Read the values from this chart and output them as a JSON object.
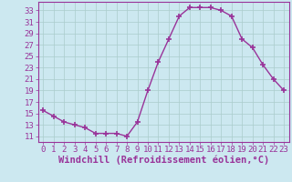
{
  "x": [
    0,
    1,
    2,
    3,
    4,
    5,
    6,
    7,
    8,
    9,
    10,
    11,
    12,
    13,
    14,
    15,
    16,
    17,
    18,
    19,
    20,
    21,
    22,
    23
  ],
  "y": [
    15.5,
    14.5,
    13.5,
    13.0,
    12.5,
    11.5,
    11.5,
    11.5,
    11.0,
    13.5,
    19.0,
    24.0,
    28.0,
    32.0,
    33.5,
    33.5,
    33.5,
    33.0,
    32.0,
    28.0,
    26.5,
    23.5,
    21.0,
    19.0
  ],
  "line_color": "#993399",
  "marker_color": "#993399",
  "bg_color": "#cce8f0",
  "grid_color": "#aacccc",
  "xlabel": "Windchill (Refroidissement éolien,°C)",
  "xlim": [
    -0.5,
    23.5
  ],
  "ylim": [
    10.0,
    34.5
  ],
  "yticks": [
    11,
    13,
    15,
    17,
    19,
    21,
    23,
    25,
    27,
    29,
    31,
    33
  ],
  "xticks": [
    0,
    1,
    2,
    3,
    4,
    5,
    6,
    7,
    8,
    9,
    10,
    11,
    12,
    13,
    14,
    15,
    16,
    17,
    18,
    19,
    20,
    21,
    22,
    23
  ],
  "tick_fontsize": 6.5,
  "xlabel_fontsize": 7.5,
  "line_width": 1.0,
  "marker_size": 4
}
